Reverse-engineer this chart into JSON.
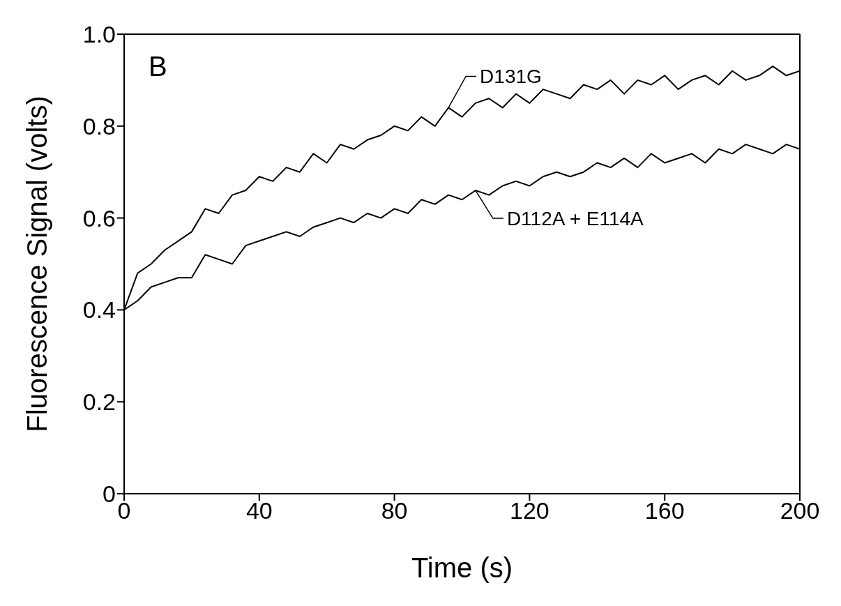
{
  "chart_data": {
    "type": "line",
    "xlabel": "Time (s)",
    "ylabel": "Fluorescence Signal (volts)",
    "x": [
      0,
      4,
      8,
      12,
      16,
      20,
      24,
      28,
      32,
      36,
      40,
      44,
      48,
      52,
      56,
      60,
      64,
      68,
      72,
      76,
      80,
      84,
      88,
      92,
      96,
      100,
      104,
      108,
      112,
      116,
      120,
      124,
      128,
      132,
      136,
      140,
      144,
      148,
      152,
      156,
      160,
      164,
      168,
      172,
      176,
      180,
      184,
      188,
      192,
      196,
      200
    ],
    "xlim": [
      0,
      200
    ],
    "xticks": [
      0,
      40,
      80,
      120,
      160,
      200
    ],
    "ylim": [
      0,
      1.0
    ],
    "yticks": [
      0,
      0.2,
      0.4,
      0.6,
      0.8,
      {
        "value": 1.0,
        "label": "1.0"
      }
    ],
    "marker": "none",
    "line_style": "solid",
    "series": [
      {
        "color": "#000000",
        "values": [
          0.4,
          0.48,
          0.5,
          0.53,
          0.55,
          0.57,
          0.62,
          0.61,
          0.65,
          0.66,
          0.69,
          0.68,
          0.71,
          0.7,
          0.74,
          0.72,
          0.76,
          0.75,
          0.77,
          0.78,
          0.8,
          0.79,
          0.82,
          0.8,
          0.84,
          0.82,
          0.85,
          0.86,
          0.84,
          0.87,
          0.85,
          0.88,
          0.87,
          0.86,
          0.89,
          0.88,
          0.9,
          0.87,
          0.9,
          0.89,
          0.91,
          0.88,
          0.9,
          0.91,
          0.89,
          0.92,
          0.9,
          0.91,
          0.93,
          0.91,
          0.92
        ]
      },
      {
        "color": "#000000",
        "values": [
          0.4,
          0.42,
          0.45,
          0.46,
          0.47,
          0.47,
          0.52,
          0.51,
          0.5,
          0.54,
          0.55,
          0.56,
          0.57,
          0.56,
          0.58,
          0.59,
          0.6,
          0.59,
          0.61,
          0.6,
          0.62,
          0.61,
          0.64,
          0.63,
          0.65,
          0.64,
          0.66,
          0.65,
          0.67,
          0.68,
          0.67,
          0.69,
          0.7,
          0.69,
          0.7,
          0.72,
          0.71,
          0.73,
          0.71,
          0.74,
          0.72,
          0.73,
          0.74,
          0.72,
          0.75,
          0.74,
          0.76,
          0.75,
          0.74,
          0.76,
          0.75
        ]
      }
    ],
    "annotations": [
      "B",
      {
        "text": "D131G",
        "x": 96,
        "y": 0.84
      },
      {
        "text": "D112A + E114A",
        "x": 104,
        "y": 0.66
      }
    ]
  }
}
